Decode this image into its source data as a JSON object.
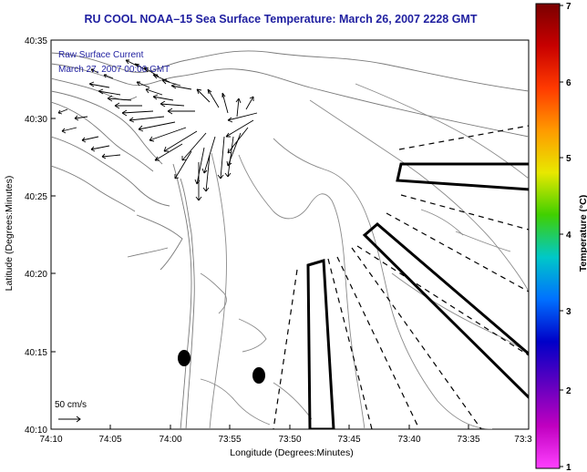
{
  "title": "RU COOL  NOAA–15  Sea Surface Temperature:  March 26, 2007 2228 GMT",
  "legend": {
    "line1": "Raw Surface Current",
    "line2": "March 27, 2007 00:00 GMT"
  },
  "axes": {
    "ylabel": "Latitude (Degrees:Minutes)",
    "xlabel": "Longitude (Degrees:Minutes)",
    "yticks": [
      "40:35",
      "40:30",
      "40:25",
      "40:20",
      "40:15",
      "40:10"
    ],
    "xticks": [
      "74:10",
      "74:05",
      "74:00",
      "73:55",
      "73:50",
      "73:45",
      "73:40",
      "73:35",
      "73:3"
    ]
  },
  "scale_vector": {
    "label": "50 cm/s"
  },
  "colorbar": {
    "label": "Temperature (°C)",
    "ticks": [
      "7",
      "6",
      "5",
      "4",
      "3",
      "2",
      "1"
    ],
    "colors": [
      "#7a0000",
      "#c80000",
      "#ff3a00",
      "#ff9a00",
      "#e8e800",
      "#40d000",
      "#00c8c8",
      "#0070ff",
      "#0000c8",
      "#6000c0",
      "#c000c0",
      "#ff40ff"
    ]
  }
}
